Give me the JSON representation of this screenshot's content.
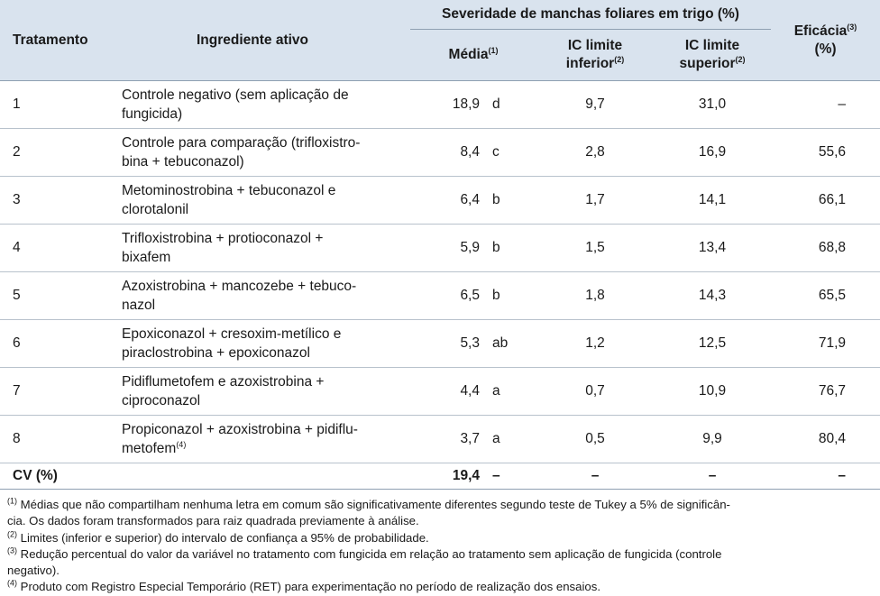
{
  "header": {
    "tratamento": "Tratamento",
    "ingrediente": "Ingrediente ativo",
    "severidade": "Severidade de manchas foliares em trigo (%)",
    "media": "Média",
    "media_sup": "(1)",
    "ic_inf_1": "IC limite",
    "ic_inf_2": "inferior",
    "ic_inf_sup": "(2)",
    "ic_sup_1": "IC limite",
    "ic_sup_2": "superior",
    "ic_sup_sup": "(2)",
    "eficacia": "Eficácia",
    "eficacia_sup": "(3)",
    "eficacia_unit": "(%)"
  },
  "rows": [
    {
      "trat": "1",
      "ing_1": "Controle negativo (sem aplicação de",
      "ing_2": "fungicida)",
      "media": "18,9",
      "letra": "d",
      "ic_inf": "9,7",
      "ic_sup": "31,0",
      "ef": "–"
    },
    {
      "trat": "2",
      "ing_1": "Controle para comparação (trifloxistro-",
      "ing_2": "bina + tebuconazol)",
      "media": "8,4",
      "letra": "c",
      "ic_inf": "2,8",
      "ic_sup": "16,9",
      "ef": "55,6"
    },
    {
      "trat": "3",
      "ing_1": "Metominostrobina + tebuconazol e",
      "ing_2": "clorotalonil",
      "media": "6,4",
      "letra": "b",
      "ic_inf": "1,7",
      "ic_sup": "14,1",
      "ef": "66,1"
    },
    {
      "trat": "4",
      "ing_1": "Trifloxistrobina + protioconazol +",
      "ing_2": "bixafem",
      "media": "5,9",
      "letra": "b",
      "ic_inf": "1,5",
      "ic_sup": "13,4",
      "ef": "68,8"
    },
    {
      "trat": "5",
      "ing_1": "Azoxistrobina + mancozebe + tebuco-",
      "ing_2": "nazol",
      "media": "6,5",
      "letra": "b",
      "ic_inf": "1,8",
      "ic_sup": "14,3",
      "ef": "65,5"
    },
    {
      "trat": "6",
      "ing_1": "Epoxiconazol + cresoxim-metílico e",
      "ing_2": "piraclostrobina + epoxiconazol",
      "media": "5,3",
      "letra": "ab",
      "ic_inf": "1,2",
      "ic_sup": "12,5",
      "ef": "71,9"
    },
    {
      "trat": "7",
      "ing_1": "Pidiflumetofem e azoxistrobina +",
      "ing_2": "ciproconazol",
      "media": "4,4",
      "letra": "a",
      "ic_inf": "0,7",
      "ic_sup": "10,9",
      "ef": "76,7"
    },
    {
      "trat": "8",
      "ing_1": "Propiconazol + azoxistrobina + pidiflu-",
      "ing_2": "metofem",
      "ing_2_sup": "(4)",
      "media": "3,7",
      "letra": "a",
      "ic_inf": "0,5",
      "ic_sup": "9,9",
      "ef": "80,4"
    }
  ],
  "cv": {
    "label": "CV (%)",
    "media": "19,4",
    "letra": "–",
    "ic_inf": "–",
    "ic_sup": "–",
    "ef": "–"
  },
  "notes": [
    {
      "sup": "(1)",
      "text": " Médias que não compartilham nenhuma letra em comum são significativamente diferentes segundo teste de Tukey a 5% de significân-"
    },
    {
      "sup": "",
      "text": "cia. Os dados foram transformados para raiz quadrada previamente à análise."
    },
    {
      "sup": "(2)",
      "text": " Limites (inferior e superior) do intervalo de confiança a 95% de probabilidade."
    },
    {
      "sup": "(3)",
      "text": " Redução percentual do valor da variável no tratamento com fungicida em relação ao tratamento sem aplicação de fungicida (controle"
    },
    {
      "sup": "",
      "text": "negativo)."
    },
    {
      "sup": "(4)",
      "text": " Produto com Registro Especial Temporário (RET) para experimentação no período de realização dos ensaios."
    }
  ]
}
